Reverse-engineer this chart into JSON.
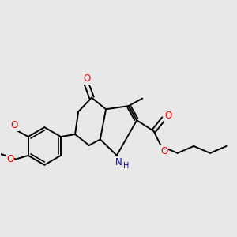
{
  "background_color": "#e8e8e8",
  "bond_color": "#000000",
  "atom_colors": {
    "O": "#ff0000",
    "N": "#0000cc",
    "C": "#000000",
    "H": "#000000"
  },
  "bond_width": 1.4,
  "figsize": [
    3.0,
    3.0
  ],
  "dpi": 100,
  "font_size_atoms": 8.5
}
